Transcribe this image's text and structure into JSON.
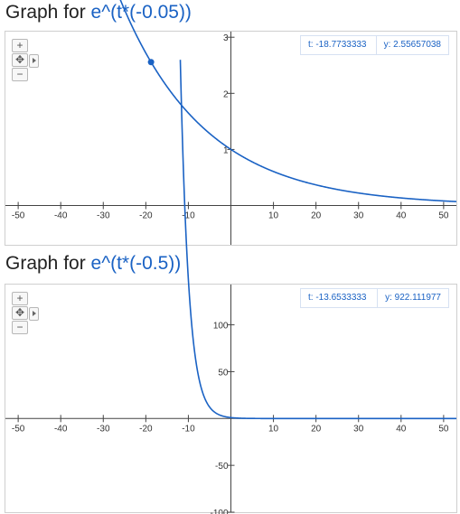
{
  "graphs": [
    {
      "title_prefix": "Graph for ",
      "title_function": "e^(t*(-0.05))",
      "readout": {
        "t": "t: -18.7733333",
        "y": "y: 2.55657038"
      },
      "cursor_point": {
        "t": -18.7733333,
        "y": 2.55657038
      }
    },
    {
      "title_prefix": "Graph for ",
      "title_function": "e^(t*(-0.5))",
      "readout": {
        "t": "t: -13.6533333",
        "y": "y: 922.111977"
      }
    }
  ],
  "zoom_controls": {
    "zoom_in": "+",
    "pan": "✥",
    "zoom_out": "−"
  },
  "chart_data": [
    {
      "type": "line",
      "function": "e^(t*(-0.05))",
      "rate": -0.05,
      "x_ticks": [
        -50,
        -40,
        -30,
        -20,
        -10,
        10,
        20,
        30,
        40,
        50
      ],
      "y_ticks": [
        1,
        2,
        3
      ],
      "xlim": [
        -53,
        53
      ],
      "ylim": [
        -0.7,
        3.1
      ],
      "curve_color": "#1a62c4"
    },
    {
      "type": "line",
      "function": "e^(t*(-0.5))",
      "rate": -0.5,
      "x_ticks": [
        -50,
        -40,
        -30,
        -20,
        -10,
        10,
        20,
        30,
        40,
        50
      ],
      "y_ticks": [
        100,
        50,
        -50,
        -100
      ],
      "xlim": [
        -53,
        53
      ],
      "ylim": [
        -100,
        143
      ],
      "curve_color": "#1a62c4"
    }
  ]
}
